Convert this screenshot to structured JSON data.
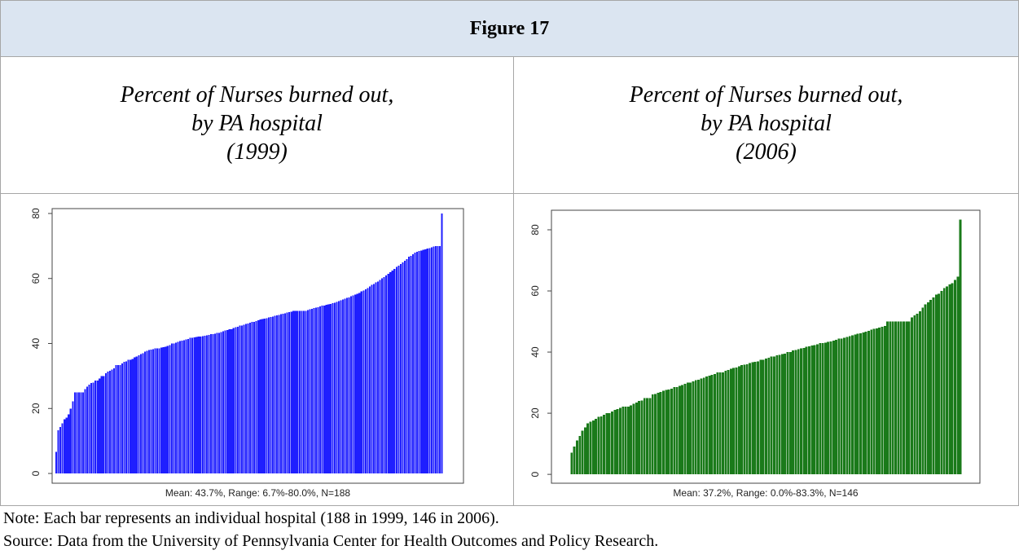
{
  "header": {
    "title": "Figure 17"
  },
  "chart_data": [
    {
      "type": "bar",
      "title": [
        "Percent of Nurses burned out,",
        "by PA hospital",
        "(1999)"
      ],
      "xlabel": "Mean: 43.7%, Range: 6.7%-80.0%, N=188",
      "color": "#1f1fff",
      "ylim": [
        -3,
        81.5
      ],
      "yticks": [
        0,
        20,
        40,
        60,
        80
      ],
      "values": [
        6.7,
        13.3,
        14.3,
        15.4,
        16.7,
        17.2,
        18.2,
        20.0,
        22.2,
        25.0,
        25.0,
        25.0,
        25.0,
        25.0,
        25.9,
        26.7,
        27.3,
        27.8,
        28.0,
        28.6,
        28.6,
        29.2,
        30.0,
        30.0,
        30.8,
        31.3,
        31.6,
        32.0,
        32.4,
        33.3,
        33.3,
        33.3,
        33.8,
        34.3,
        34.5,
        35.0,
        35.0,
        35.3,
        35.7,
        36.0,
        36.4,
        36.7,
        37.0,
        37.5,
        37.8,
        38.0,
        38.1,
        38.2,
        38.5,
        38.5,
        38.5,
        38.7,
        38.9,
        39.0,
        39.3,
        39.5,
        40.0,
        40.0,
        40.3,
        40.5,
        40.7,
        40.9,
        41.0,
        41.2,
        41.4,
        41.7,
        41.7,
        41.9,
        42.0,
        42.1,
        42.1,
        42.3,
        42.4,
        42.5,
        42.6,
        42.9,
        42.9,
        43.0,
        43.2,
        43.3,
        43.5,
        43.8,
        44.0,
        44.1,
        44.4,
        44.4,
        44.8,
        45.0,
        45.2,
        45.5,
        45.5,
        45.8,
        46.0,
        46.2,
        46.4,
        46.7,
        46.7,
        46.9,
        47.1,
        47.4,
        47.5,
        47.6,
        47.8,
        48.0,
        48.1,
        48.3,
        48.5,
        48.6,
        48.8,
        49.0,
        49.1,
        49.3,
        49.5,
        49.6,
        49.8,
        50.0,
        50.0,
        50.0,
        50.0,
        50.0,
        50.0,
        50.0,
        50.3,
        50.5,
        50.7,
        50.9,
        51.0,
        51.2,
        51.4,
        51.6,
        51.7,
        51.9,
        52.0,
        52.2,
        52.4,
        52.6,
        52.8,
        53.0,
        53.3,
        53.6,
        53.8,
        54.0,
        54.2,
        54.5,
        54.8,
        55.0,
        55.3,
        55.6,
        56.0,
        56.3,
        56.7,
        57.1,
        57.5,
        58.0,
        58.3,
        58.8,
        59.1,
        59.5,
        60.0,
        60.5,
        61.0,
        61.5,
        62.0,
        62.5,
        63.0,
        63.6,
        64.0,
        64.5,
        65.0,
        65.5,
        66.0,
        66.7,
        67.0,
        67.5,
        68.0,
        68.2,
        68.4,
        68.6,
        68.8,
        69.0,
        69.2,
        69.4,
        69.6,
        69.8,
        70.0,
        70.0,
        70.0,
        80.0
      ]
    },
    {
      "type": "bar",
      "title": [
        "Percent of Nurses burned out,",
        "by PA hospital",
        "(2006)"
      ],
      "xlabel": "Mean: 37.2%, Range: 0.0%-83.3%, N=146",
      "color": "#1a7a1a",
      "ylim": [
        -2.9,
        86.4
      ],
      "yticks": [
        0,
        20,
        40,
        60,
        80
      ],
      "values": [
        0.0,
        7.1,
        9.1,
        11.1,
        12.5,
        14.3,
        15.4,
        16.7,
        17.2,
        17.6,
        18.2,
        18.8,
        19.0,
        19.5,
        20.0,
        20.0,
        20.5,
        21.1,
        21.4,
        21.7,
        22.2,
        22.2,
        22.2,
        22.6,
        23.1,
        23.5,
        24.0,
        24.2,
        25.0,
        25.0,
        25.0,
        26.1,
        26.3,
        26.7,
        26.9,
        27.3,
        27.6,
        27.8,
        28.0,
        28.6,
        28.6,
        28.9,
        29.2,
        29.6,
        30.0,
        30.0,
        30.4,
        30.8,
        31.0,
        31.3,
        31.6,
        32.0,
        32.3,
        32.5,
        32.8,
        33.3,
        33.3,
        33.3,
        33.9,
        34.1,
        34.5,
        34.8,
        35.0,
        35.3,
        35.7,
        35.9,
        36.0,
        36.4,
        36.7,
        36.8,
        37.0,
        37.5,
        37.5,
        37.9,
        38.1,
        38.5,
        38.5,
        38.9,
        39.1,
        39.3,
        39.5,
        40.0,
        40.0,
        40.5,
        40.7,
        41.0,
        41.2,
        41.4,
        41.7,
        41.9,
        42.1,
        42.3,
        42.5,
        42.9,
        42.9,
        43.1,
        43.3,
        43.5,
        43.8,
        44.0,
        44.4,
        44.4,
        44.7,
        45.0,
        45.2,
        45.5,
        45.8,
        46.0,
        46.2,
        46.4,
        46.7,
        47.0,
        47.4,
        47.6,
        47.8,
        48.0,
        48.3,
        48.6,
        50.0,
        50.0,
        50.0,
        50.0,
        50.0,
        50.0,
        50.0,
        50.0,
        50.0,
        51.4,
        52.0,
        52.6,
        53.3,
        54.5,
        55.6,
        56.3,
        57.1,
        57.9,
        58.8,
        59.1,
        60.0,
        60.9,
        61.5,
        62.1,
        62.5,
        63.6,
        64.7,
        83.3
      ]
    }
  ],
  "notes": [
    "Note: Each bar represents an individual hospital (188 in 1999, 146 in 2006).",
    "Source: Data from the University of Pennsylvania Center for Health Outcomes and Policy Research."
  ]
}
